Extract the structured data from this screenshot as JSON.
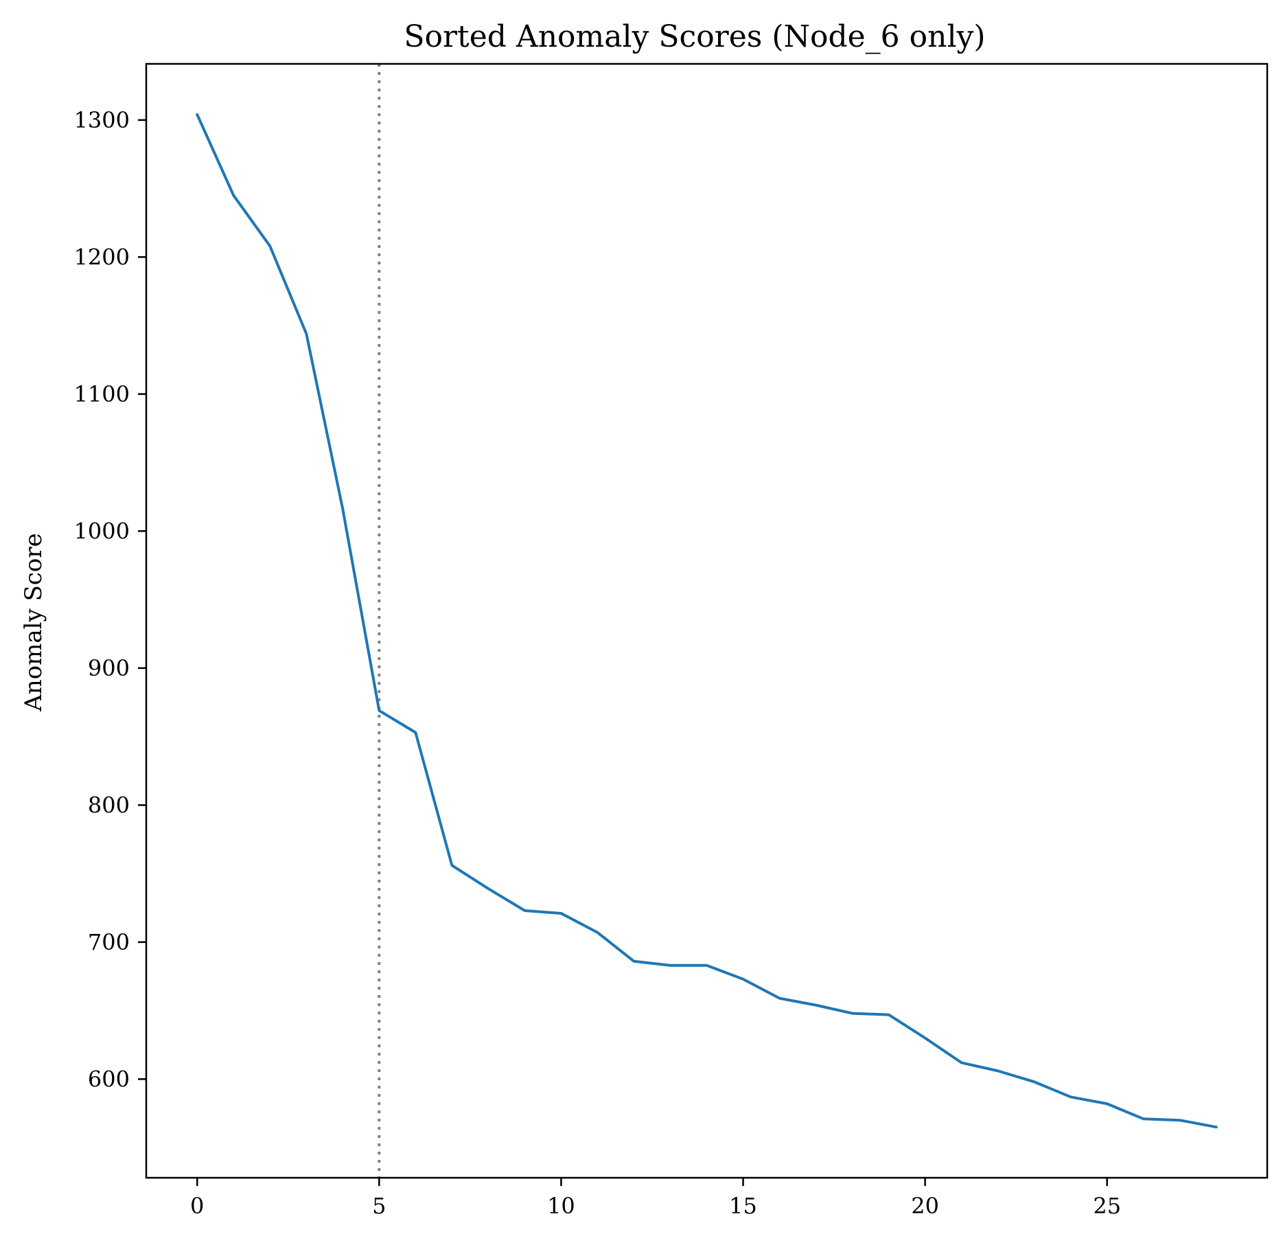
{
  "chart_data": {
    "type": "line",
    "title": "Sorted Anomaly Scores (Node_6 only)",
    "xlabel": "",
    "ylabel": "Anomaly Score",
    "x": [
      0,
      1,
      2,
      3,
      4,
      5,
      6,
      7,
      8,
      9,
      10,
      11,
      12,
      13,
      14,
      15,
      16,
      17,
      18,
      19,
      20,
      21,
      22,
      23,
      24,
      25,
      26,
      27,
      28
    ],
    "series": [
      {
        "values": [
          1304,
          1245,
          1208,
          1144,
          1016,
          869,
          853,
          756,
          739,
          723,
          721,
          707,
          686,
          683,
          683,
          673,
          659,
          654,
          648,
          647,
          630,
          612,
          606,
          598,
          587,
          582,
          571,
          570,
          565
        ],
        "color": "#1f77b4"
      }
    ],
    "vline": {
      "x": 5,
      "color": "#808080",
      "style": "dotted"
    },
    "xlim": [
      -1.4,
      29.4
    ],
    "ylim": [
      528,
      1341
    ],
    "xticks": [
      0,
      5,
      10,
      15,
      20,
      25
    ],
    "yticks": [
      600,
      700,
      800,
      900,
      1000,
      1100,
      1200,
      1300
    ],
    "grid": false,
    "legend": "none"
  }
}
